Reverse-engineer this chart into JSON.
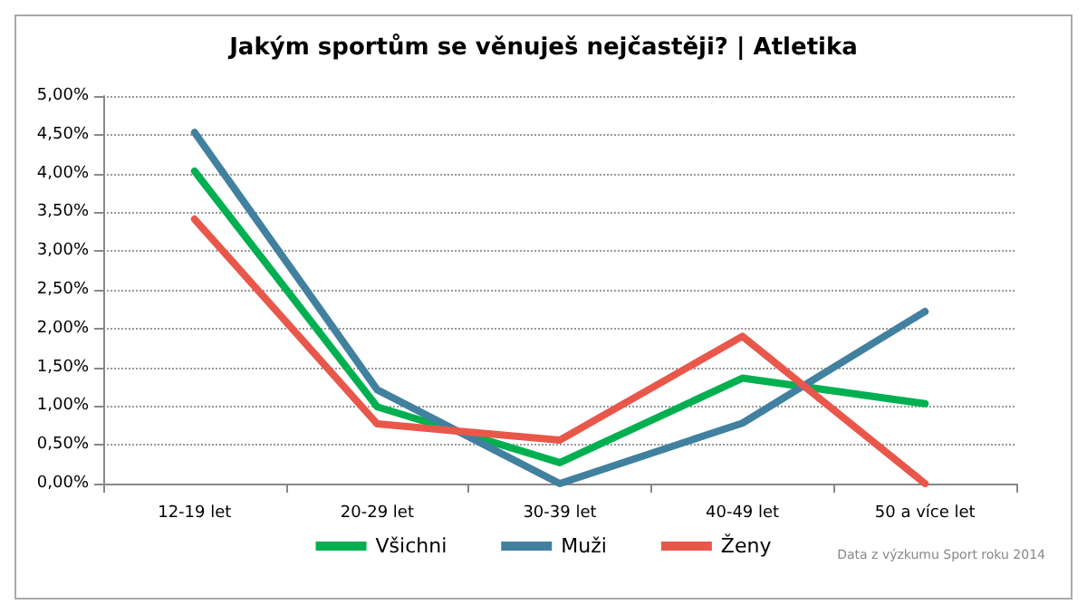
{
  "chart_data": {
    "type": "line",
    "title": "Jakým sportům se věnuješ nejčastěji? | Atletika",
    "categories": [
      "12-19 let",
      "20-29 let",
      "30-39 let",
      "40-49 let",
      "50 a více let"
    ],
    "series": [
      {
        "name": "Všichni",
        "color": "#00b050",
        "values": [
          4.03,
          0.99,
          0.27,
          1.36,
          1.03
        ]
      },
      {
        "name": "Muži",
        "color": "#41809f",
        "values": [
          4.53,
          1.21,
          0,
          0.78,
          2.22
        ]
      },
      {
        "name": "Ženy",
        "color": "#e9574b",
        "values": [
          3.41,
          0.77,
          0.56,
          1.9,
          0
        ]
      }
    ],
    "ylim": [
      0,
      5
    ],
    "yticks": [
      {
        "value": 0,
        "label": "0,00%"
      },
      {
        "value": 0.5,
        "label": "0,50%"
      },
      {
        "value": 1,
        "label": "1,00%"
      },
      {
        "value": 1.5,
        "label": "1,50%"
      },
      {
        "value": 2,
        "label": "2,00%"
      },
      {
        "value": 2.5,
        "label": "2,50%"
      },
      {
        "value": 3,
        "label": "3,00%"
      },
      {
        "value": 3.5,
        "label": "3,50%"
      },
      {
        "value": 4,
        "label": "4,00%"
      },
      {
        "value": 4.5,
        "label": "4,50%"
      },
      {
        "value": 5,
        "label": "5,00%"
      }
    ],
    "grid": "y",
    "legend": "bottom",
    "marker": "none",
    "line_style": "solid",
    "annotations": [
      "Data z výzkumu Sport roku 2014"
    ]
  }
}
